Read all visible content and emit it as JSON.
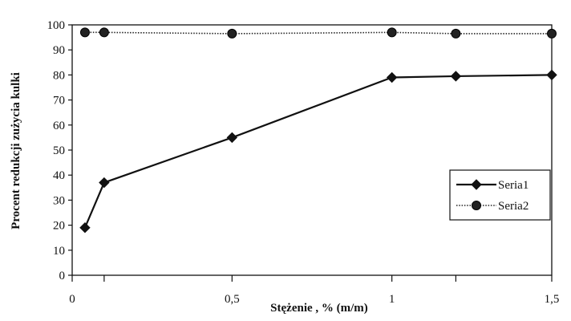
{
  "chart_data": {
    "type": "line",
    "title": "",
    "xlabel": "Stężenie , % (m/m)",
    "ylabel": "Procent redukcji zużycia kulki",
    "xlim": [
      0,
      1.5
    ],
    "ylim": [
      0,
      100
    ],
    "x_ticks": [
      0,
      0.1,
      0.5,
      1,
      1.2,
      1.5
    ],
    "x_tick_labels": [
      {
        "value": 0,
        "label": "0"
      },
      {
        "value": 0.5,
        "label": "0,5"
      },
      {
        "value": 1,
        "label": "1"
      },
      {
        "value": 1.5,
        "label": "1,5"
      }
    ],
    "y_ticks": [
      0,
      10,
      20,
      30,
      40,
      50,
      60,
      70,
      80,
      90,
      100
    ],
    "y_tick_labels": [
      "0",
      "10",
      "20",
      "30",
      "40",
      "50",
      "60",
      "70",
      "80",
      "90",
      "100"
    ],
    "grid": false,
    "legend_position": "right",
    "series": [
      {
        "name": "Seria1",
        "marker": "diamond",
        "line_style": "solid",
        "color": "#111111",
        "x": [
          0.04,
          0.1,
          0.5,
          1,
          1.2,
          1.5
        ],
        "y": [
          19,
          37,
          55,
          79,
          79.5,
          80
        ]
      },
      {
        "name": "Seria2",
        "marker": "circle",
        "line_style": "dotted",
        "color": "#222222",
        "x": [
          0.04,
          0.1,
          0.5,
          1,
          1.2,
          1.5
        ],
        "y": [
          97,
          97,
          96.5,
          97,
          96.5,
          96.5
        ]
      }
    ]
  }
}
